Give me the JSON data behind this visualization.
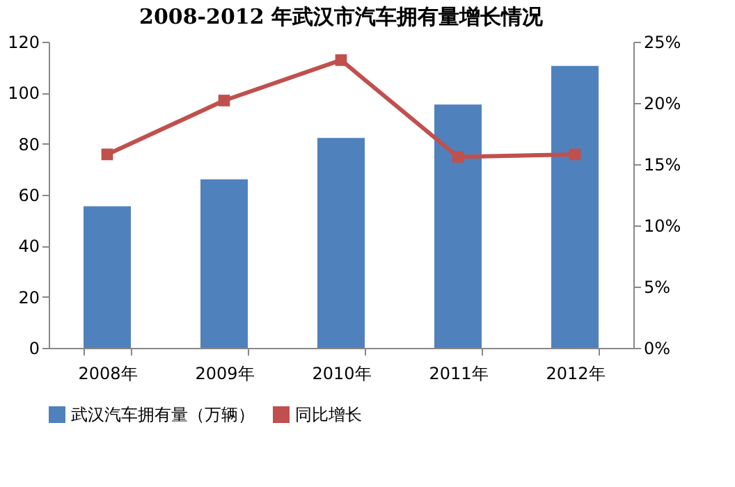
{
  "chart_data": {
    "type": "bar",
    "title": "2008-2012 年武汉市汽车拥有量增长情况",
    "categories": [
      "2008年",
      "2009年",
      "2010年",
      "2011年",
      "2012年"
    ],
    "series": [
      {
        "name": "武汉汽车拥有量（万辆）",
        "color": "#4f81bd",
        "values": [
          55.5,
          66.1,
          82.3,
          95.4,
          110.5
        ]
      },
      {
        "name": "同比增长",
        "color": "#c0504d",
        "type": "line",
        "axis": "y2",
        "marker": "square",
        "values": [
          15.8,
          20.2,
          23.5,
          15.6,
          15.8
        ]
      }
    ],
    "ylim": [
      0,
      120
    ],
    "yticks": [
      0,
      20,
      40,
      60,
      80,
      100,
      120
    ],
    "y2lim": [
      0,
      25
    ],
    "y2ticks": [
      {
        "value": 0,
        "label": "0%"
      },
      {
        "value": 5,
        "label": "5%"
      },
      {
        "value": 10,
        "label": "10%"
      },
      {
        "value": 15,
        "label": "15%"
      },
      {
        "value": 20,
        "label": "20%"
      },
      {
        "value": 25,
        "label": "25%"
      }
    ],
    "grid": false,
    "legend": "bottom"
  }
}
